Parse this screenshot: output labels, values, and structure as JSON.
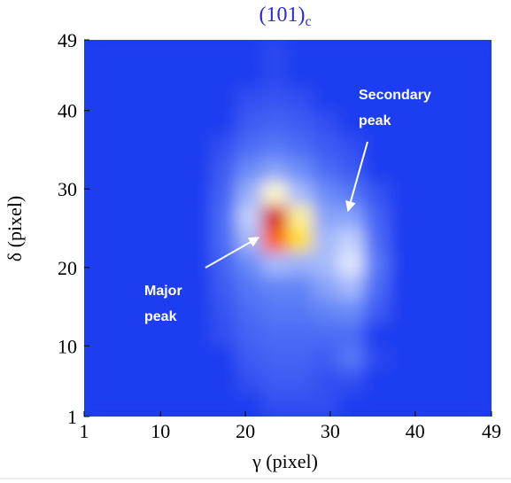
{
  "chart_data": {
    "type": "heatmap",
    "title": "(101)",
    "title_subscript": "c",
    "x_label": "γ (pixel)",
    "y_label": "δ (pixel)",
    "xlim": [
      1,
      49
    ],
    "ylim": [
      1,
      49
    ],
    "xticks": [
      1,
      10,
      20,
      30,
      40,
      49
    ],
    "yticks": [
      1,
      10,
      20,
      30,
      40,
      49
    ],
    "colormap": {
      "stops": [
        0,
        20,
        45,
        70,
        85,
        100
      ],
      "colors": [
        "#1e3cf0",
        "#6a8cf8",
        "#ffffff",
        "#ffe000",
        "#ff6000",
        "#d00000"
      ]
    },
    "z": [
      [
        0,
        0,
        0,
        0,
        0,
        0,
        0,
        5,
        5,
        5,
        0,
        0,
        0,
        0,
        0,
        0
      ],
      [
        0,
        0,
        0,
        0,
        0,
        0,
        5,
        8,
        8,
        5,
        5,
        0,
        0,
        0,
        0,
        0
      ],
      [
        0,
        0,
        0,
        0,
        0,
        0,
        8,
        10,
        10,
        8,
        15,
        3,
        0,
        0,
        0,
        0
      ],
      [
        0,
        0,
        0,
        0,
        0,
        5,
        10,
        12,
        12,
        12,
        12,
        0,
        0,
        0,
        0,
        0
      ],
      [
        0,
        0,
        0,
        0,
        0,
        6,
        12,
        15,
        15,
        18,
        20,
        8,
        0,
        0,
        0,
        0
      ],
      [
        0,
        0,
        0,
        0,
        0,
        8,
        15,
        18,
        18,
        25,
        30,
        12,
        0,
        0,
        0,
        0
      ],
      [
        0,
        0,
        0,
        0,
        0,
        10,
        20,
        30,
        28,
        30,
        40,
        15,
        0,
        0,
        0,
        0
      ],
      [
        0,
        0,
        0,
        0,
        0,
        12,
        30,
        85,
        70,
        30,
        35,
        12,
        0,
        0,
        0,
        0
      ],
      [
        0,
        0,
        0,
        0,
        0,
        12,
        35,
        100,
        55,
        25,
        25,
        10,
        0,
        0,
        0,
        0
      ],
      [
        0,
        0,
        0,
        0,
        0,
        10,
        28,
        50,
        30,
        20,
        15,
        6,
        0,
        0,
        0,
        0
      ],
      [
        0,
        0,
        0,
        0,
        0,
        8,
        20,
        25,
        20,
        12,
        8,
        0,
        0,
        0,
        0,
        0
      ],
      [
        0,
        0,
        0,
        0,
        0,
        5,
        12,
        15,
        12,
        8,
        5,
        0,
        0,
        0,
        0,
        0
      ],
      [
        0,
        0,
        0,
        0,
        0,
        0,
        8,
        10,
        8,
        5,
        0,
        0,
        0,
        0,
        0,
        0
      ],
      [
        0,
        0,
        0,
        0,
        0,
        0,
        5,
        6,
        5,
        0,
        0,
        0,
        0,
        0,
        0,
        0
      ],
      [
        0,
        0,
        0,
        0,
        0,
        0,
        0,
        3,
        0,
        0,
        0,
        0,
        0,
        0,
        0,
        0
      ],
      [
        0,
        0,
        0,
        0,
        0,
        0,
        0,
        3,
        0,
        0,
        0,
        0,
        0,
        0,
        0,
        0
      ]
    ],
    "annotations": [
      {
        "lines": [
          "Secondary",
          "peak"
        ]
      },
      {
        "lines": [
          "Major",
          "peak"
        ]
      }
    ]
  }
}
